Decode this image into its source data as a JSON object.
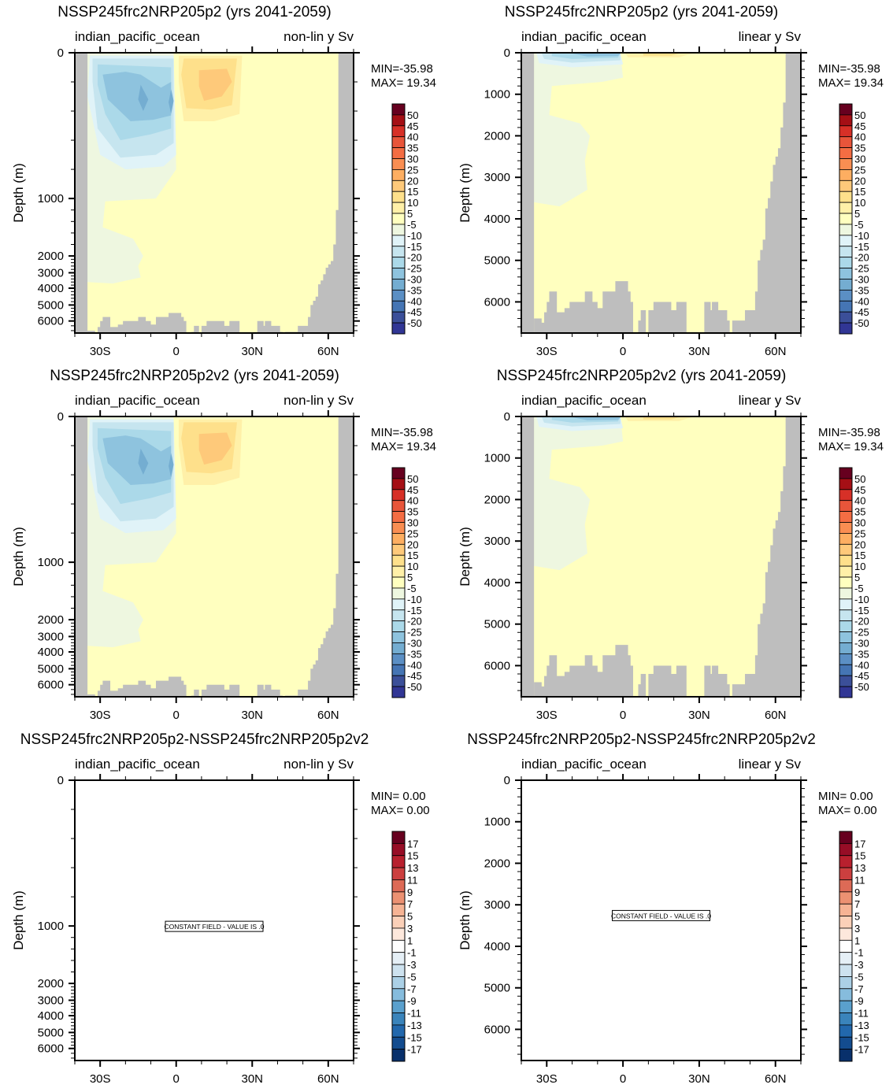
{
  "figure": {
    "description": "Meridional overturning streamfunction panels, indian_pacific_ocean"
  },
  "chart_data": [
    {
      "type": "heatmap",
      "panel": "top-left",
      "title": "NSSP245frc2NRP205p2 (yrs 2041-2059)",
      "left_subtitle": "indian_pacific_ocean",
      "right_subtitle": "non-lin y Sv",
      "ylabel": "Depth (m)",
      "y_scale": "non-linear",
      "xlim": [
        -40,
        70
      ],
      "ylim": [
        0,
        6500
      ],
      "x_ticks": [
        {
          "value": -30,
          "label": "30S"
        },
        {
          "value": 0,
          "label": "0"
        },
        {
          "value": 30,
          "label": "30N"
        },
        {
          "value": 60,
          "label": "60N"
        }
      ],
      "y_ticks": [
        "0",
        "1000",
        "2000",
        "3000",
        "4000",
        "5000",
        "6000"
      ],
      "min_label": "MIN=-35.98",
      "max_label": "MAX= 19.34",
      "colorbar": "sv50",
      "field": "streamfunction",
      "constant_field": false
    },
    {
      "type": "heatmap",
      "panel": "top-right",
      "title": "NSSP245frc2NRP205p2 (yrs 2041-2059)",
      "left_subtitle": "indian_pacific_ocean",
      "right_subtitle": "linear y Sv",
      "ylabel": "Depth (m)",
      "y_scale": "linear",
      "xlim": [
        -40,
        70
      ],
      "ylim": [
        0,
        6750
      ],
      "x_ticks": [
        {
          "value": -30,
          "label": "30S"
        },
        {
          "value": 0,
          "label": "0"
        },
        {
          "value": 30,
          "label": "30N"
        },
        {
          "value": 60,
          "label": "60N"
        }
      ],
      "y_ticks": [
        "0",
        "1000",
        "2000",
        "3000",
        "4000",
        "5000",
        "6000"
      ],
      "min_label": "MIN=-35.98",
      "max_label": "MAX= 19.34",
      "colorbar": "sv50",
      "field": "streamfunction",
      "constant_field": false
    },
    {
      "type": "heatmap",
      "panel": "middle-left",
      "title": "NSSP245frc2NRP205p2v2 (yrs 2041-2059)",
      "left_subtitle": "indian_pacific_ocean",
      "right_subtitle": "non-lin y Sv",
      "ylabel": "Depth (m)",
      "y_scale": "non-linear",
      "xlim": [
        -40,
        70
      ],
      "ylim": [
        0,
        6500
      ],
      "x_ticks": [
        {
          "value": -30,
          "label": "30S"
        },
        {
          "value": 0,
          "label": "0"
        },
        {
          "value": 30,
          "label": "30N"
        },
        {
          "value": 60,
          "label": "60N"
        }
      ],
      "y_ticks": [
        "0",
        "1000",
        "2000",
        "3000",
        "4000",
        "5000",
        "6000"
      ],
      "min_label": "MIN=-35.98",
      "max_label": "MAX= 19.34",
      "colorbar": "sv50",
      "field": "streamfunction",
      "constant_field": false
    },
    {
      "type": "heatmap",
      "panel": "middle-right",
      "title": "NSSP245frc2NRP205p2v2 (yrs 2041-2059)",
      "left_subtitle": "indian_pacific_ocean",
      "right_subtitle": "linear y Sv",
      "ylabel": "Depth (m)",
      "y_scale": "linear",
      "xlim": [
        -40,
        70
      ],
      "ylim": [
        0,
        6750
      ],
      "x_ticks": [
        {
          "value": -30,
          "label": "30S"
        },
        {
          "value": 0,
          "label": "0"
        },
        {
          "value": 30,
          "label": "30N"
        },
        {
          "value": 60,
          "label": "60N"
        }
      ],
      "y_ticks": [
        "0",
        "1000",
        "2000",
        "3000",
        "4000",
        "5000",
        "6000"
      ],
      "min_label": "MIN=-35.98",
      "max_label": "MAX= 19.34",
      "colorbar": "sv50",
      "field": "streamfunction",
      "constant_field": false
    },
    {
      "type": "heatmap",
      "panel": "bottom-left",
      "title": "NSSP245frc2NRP205p2-NSSP245frc2NRP205p2v2",
      "left_subtitle": "indian_pacific_ocean",
      "right_subtitle": "non-lin y Sv",
      "ylabel": "Depth (m)",
      "y_scale": "non-linear",
      "xlim": [
        -40,
        70
      ],
      "ylim": [
        0,
        6500
      ],
      "x_ticks": [
        {
          "value": -30,
          "label": "30S"
        },
        {
          "value": 0,
          "label": "0"
        },
        {
          "value": 30,
          "label": "30N"
        },
        {
          "value": 60,
          "label": "60N"
        }
      ],
      "y_ticks": [
        "0",
        "1000",
        "2000",
        "3000",
        "4000",
        "5000",
        "6000"
      ],
      "min_label": "MIN=  0.00",
      "max_label": "MAX=  0.00",
      "colorbar": "diff17",
      "field": "difference",
      "constant_field": true,
      "constant_label": "CONSTANT FIELD - VALUE IS .0"
    },
    {
      "type": "heatmap",
      "panel": "bottom-right",
      "title": "NSSP245frc2NRP205p2-NSSP245frc2NRP205p2v2",
      "left_subtitle": "indian_pacific_ocean",
      "right_subtitle": "linear y Sv",
      "ylabel": "Depth (m)",
      "y_scale": "linear",
      "xlim": [
        -40,
        70
      ],
      "ylim": [
        0,
        6750
      ],
      "x_ticks": [
        {
          "value": -30,
          "label": "30S"
        },
        {
          "value": 0,
          "label": "0"
        },
        {
          "value": 30,
          "label": "30N"
        },
        {
          "value": 60,
          "label": "60N"
        }
      ],
      "y_ticks": [
        "0",
        "1000",
        "2000",
        "3000",
        "4000",
        "5000",
        "6000"
      ],
      "min_label": "MIN=  0.00",
      "max_label": "MAX=  0.00",
      "colorbar": "diff17",
      "field": "difference",
      "constant_field": true,
      "constant_label": "CONSTANT FIELD - VALUE IS .0"
    }
  ],
  "colorbars": {
    "sv50": {
      "labels": [
        "50",
        "45",
        "40",
        "35",
        "30",
        "25",
        "20",
        "15",
        "10",
        "5",
        "-5",
        "-10",
        "-15",
        "-20",
        "-25",
        "-30",
        "-35",
        "-40",
        "-45",
        "-50"
      ],
      "colors": [
        "#67001f",
        "#a50f15",
        "#d73027",
        "#e8553a",
        "#f46d43",
        "#f98e52",
        "#fdae61",
        "#fec97a",
        "#fee08b",
        "#fff0a8",
        "#ffffbf",
        "#eef7e0",
        "#e0f3f8",
        "#c6e5ef",
        "#abd9e9",
        "#8ec3de",
        "#74add1",
        "#5b8fc4",
        "#4575b4",
        "#3b4f99",
        "#313695"
      ]
    },
    "diff17": {
      "labels": [
        "17",
        "15",
        "13",
        "11",
        "9",
        "7",
        "5",
        "3",
        "1",
        "-1",
        "-3",
        "-5",
        "-7",
        "-9",
        "-11",
        "-13",
        "-15",
        "-17"
      ],
      "colors": [
        "#67001f",
        "#970d26",
        "#b8202e",
        "#cc3f3f",
        "#dd6a56",
        "#ec9172",
        "#f6b394",
        "#fbd0b8",
        "#fde8dc",
        "#ffffff",
        "#e5eff6",
        "#cde2ef",
        "#abd0e6",
        "#86bcdd",
        "#5aa0cd",
        "#3a84bb",
        "#2268ad",
        "#134c8f",
        "#08306b"
      ]
    }
  },
  "palette": {
    "land": "#bebebe",
    "background_field": "#ffffbf",
    "frame": "#000000"
  }
}
